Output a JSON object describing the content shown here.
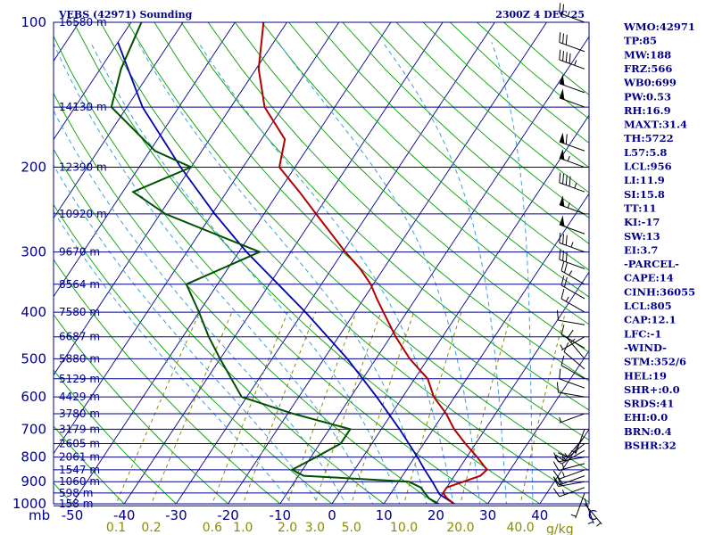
{
  "chart_data": {
    "type": "skew-t log-p sounding",
    "title_left": "VEBS (42971) Sounding",
    "title_right": "2300Z  4 DEC 25",
    "p_axis_unit": "mb",
    "t_axis_unit": "C",
    "mix_axis_unit": "g/kg",
    "pressure_levels": [
      100,
      200,
      300,
      400,
      500,
      600,
      700,
      800,
      900,
      1000
    ],
    "pressure_label_levels": [
      100,
      200,
      300,
      400,
      500,
      600,
      700,
      800,
      900,
      1000
    ],
    "temperature_ticks": [
      -50,
      -40,
      -30,
      -20,
      -10,
      0,
      10,
      20,
      30,
      40
    ],
    "mixing_ratio_ticks": [
      "0.1",
      "0.2",
      "0.6",
      "1.0",
      "2.0",
      "3.0",
      "5.0",
      "10.0",
      "20.0",
      "40.0"
    ],
    "mixing_ratio_values": [
      0.1,
      0.2,
      0.6,
      1.0,
      2.0,
      3.0,
      5.0,
      10.0,
      20.0,
      40.0
    ],
    "height_labels": [
      {
        "p": 100,
        "label": "16580 m"
      },
      {
        "p": 150,
        "label": "14130 m"
      },
      {
        "p": 200,
        "label": "12390 m"
      },
      {
        "p": 250,
        "label": "10920 m"
      },
      {
        "p": 300,
        "label": "9670 m"
      },
      {
        "p": 350,
        "label": "8564 m"
      },
      {
        "p": 400,
        "label": "7580 m"
      },
      {
        "p": 450,
        "label": "6687 m"
      },
      {
        "p": 500,
        "label": "5880 m"
      },
      {
        "p": 550,
        "label": "5129 m"
      },
      {
        "p": 600,
        "label": "4429 m"
      },
      {
        "p": 650,
        "label": "3780 m"
      },
      {
        "p": 700,
        "label": "3179 m"
      },
      {
        "p": 750,
        "label": "2605 m"
      },
      {
        "p": 800,
        "label": "2061 m"
      },
      {
        "p": 850,
        "label": "1547 m"
      },
      {
        "p": 900,
        "label": "1060 m"
      },
      {
        "p": 950,
        "label": "598 m"
      },
      {
        "p": 1000,
        "label": "158 m"
      }
    ],
    "temperature_profile": [
      {
        "p": 1010,
        "t": 24.5
      },
      {
        "p": 1000,
        "t": 23.5
      },
      {
        "p": 975,
        "t": 21.5
      },
      {
        "p": 950,
        "t": 20.0
      },
      {
        "p": 925,
        "t": 20.0
      },
      {
        "p": 900,
        "t": 22.5
      },
      {
        "p": 875,
        "t": 25.0
      },
      {
        "p": 850,
        "t": 25.5
      },
      {
        "p": 800,
        "t": 22.0
      },
      {
        "p": 750,
        "t": 18.0
      },
      {
        "p": 700,
        "t": 14.0
      },
      {
        "p": 650,
        "t": 10.5
      },
      {
        "p": 600,
        "t": 6.0
      },
      {
        "p": 550,
        "t": 2.5
      },
      {
        "p": 500,
        "t": -3.5
      },
      {
        "p": 450,
        "t": -9.0
      },
      {
        "p": 400,
        "t": -14.5
      },
      {
        "p": 375,
        "t": -17.5
      },
      {
        "p": 350,
        "t": -20.5
      },
      {
        "p": 325,
        "t": -24.5
      },
      {
        "p": 300,
        "t": -29.5
      },
      {
        "p": 275,
        "t": -34.5
      },
      {
        "p": 250,
        "t": -40.0
      },
      {
        "p": 225,
        "t": -46.0
      },
      {
        "p": 200,
        "t": -53.0
      },
      {
        "p": 175,
        "t": -55.5
      },
      {
        "p": 150,
        "t": -63.5
      },
      {
        "p": 125,
        "t": -69.5
      },
      {
        "p": 100,
        "t": -74.5
      }
    ],
    "dewpoint_profile": [
      {
        "p": 1010,
        "t": 21.0
      },
      {
        "p": 1000,
        "t": 20.5
      },
      {
        "p": 975,
        "t": 18.0
      },
      {
        "p": 950,
        "t": 16.5
      },
      {
        "p": 925,
        "t": 15.0
      },
      {
        "p": 900,
        "t": 12.0
      },
      {
        "p": 875,
        "t": -9.0
      },
      {
        "p": 850,
        "t": -12.0
      },
      {
        "p": 800,
        "t": -9.0
      },
      {
        "p": 750,
        "t": -6.0
      },
      {
        "p": 700,
        "t": -6.0
      },
      {
        "p": 650,
        "t": -19.0
      },
      {
        "p": 600,
        "t": -31.0
      },
      {
        "p": 500,
        "t": -40.0
      },
      {
        "p": 450,
        "t": -45.0
      },
      {
        "p": 400,
        "t": -50.0
      },
      {
        "p": 350,
        "t": -56.0
      },
      {
        "p": 300,
        "t": -46.0
      },
      {
        "p": 250,
        "t": -69.0
      },
      {
        "p": 225,
        "t": -78.0
      },
      {
        "p": 200,
        "t": -70.0
      },
      {
        "p": 185,
        "t": -79.0
      },
      {
        "p": 150,
        "t": -93.0
      },
      {
        "p": 125,
        "t": -96.0
      },
      {
        "p": 100,
        "t": -98.0
      }
    ],
    "parcel_profile": [
      {
        "p": 1000,
        "t": 23.5
      },
      {
        "p": 956,
        "t": 19.5
      },
      {
        "p": 900,
        "t": 16.5
      },
      {
        "p": 850,
        "t": 13.5
      },
      {
        "p": 800,
        "t": 10.5
      },
      {
        "p": 700,
        "t": 3.5
      },
      {
        "p": 600,
        "t": -5.0
      },
      {
        "p": 500,
        "t": -15.5
      },
      {
        "p": 400,
        "t": -29.5
      },
      {
        "p": 300,
        "t": -48.5
      },
      {
        "p": 250,
        "t": -59.5
      },
      {
        "p": 200,
        "t": -72.0
      },
      {
        "p": 150,
        "t": -87.0
      },
      {
        "p": 110,
        "t": -100.0
      }
    ],
    "wind_barbs": [
      {
        "p": 1000,
        "dir": 140,
        "spd": 5
      },
      {
        "p": 975,
        "dir": 160,
        "spd": 5
      },
      {
        "p": 950,
        "dir": 200,
        "spd": 5
      },
      {
        "p": 925,
        "dir": 250,
        "spd": 15
      },
      {
        "p": 900,
        "dir": 260,
        "spd": 20
      },
      {
        "p": 875,
        "dir": 250,
        "spd": 20
      },
      {
        "p": 850,
        "dir": 250,
        "spd": 15
      },
      {
        "p": 825,
        "dir": 255,
        "spd": 15
      },
      {
        "p": 800,
        "dir": 260,
        "spd": 15
      },
      {
        "p": 775,
        "dir": 240,
        "spd": 15
      },
      {
        "p": 750,
        "dir": 230,
        "spd": 15
      },
      {
        "p": 725,
        "dir": 220,
        "spd": 10
      },
      {
        "p": 700,
        "dir": 200,
        "spd": 5
      },
      {
        "p": 650,
        "dir": 250,
        "spd": 5
      },
      {
        "p": 600,
        "dir": 280,
        "spd": 10
      },
      {
        "p": 575,
        "dir": 290,
        "spd": 10
      },
      {
        "p": 550,
        "dir": 300,
        "spd": 10
      },
      {
        "p": 525,
        "dir": 310,
        "spd": 10
      },
      {
        "p": 500,
        "dir": 320,
        "spd": 15
      },
      {
        "p": 475,
        "dir": 300,
        "spd": 10
      },
      {
        "p": 450,
        "dir": 240,
        "spd": 5
      },
      {
        "p": 425,
        "dir": 280,
        "spd": 10
      },
      {
        "p": 400,
        "dir": 300,
        "spd": 15
      },
      {
        "p": 375,
        "dir": 300,
        "spd": 20
      },
      {
        "p": 350,
        "dir": 300,
        "spd": 25
      },
      {
        "p": 325,
        "dir": 290,
        "spd": 30
      },
      {
        "p": 300,
        "dir": 290,
        "spd": 35
      },
      {
        "p": 275,
        "dir": 290,
        "spd": 50
      },
      {
        "p": 250,
        "dir": 290,
        "spd": 55
      },
      {
        "p": 225,
        "dir": 290,
        "spd": 45
      },
      {
        "p": 200,
        "dir": 290,
        "spd": 55
      },
      {
        "p": 185,
        "dir": 290,
        "spd": 60
      },
      {
        "p": 150,
        "dir": 290,
        "spd": 50
      },
      {
        "p": 140,
        "dir": 290,
        "spd": 50
      },
      {
        "p": 125,
        "dir": 290,
        "spd": 45
      },
      {
        "p": 115,
        "dir": 290,
        "spd": 30
      },
      {
        "p": 100,
        "dir": 290,
        "spd": 25
      }
    ],
    "colors": {
      "isobar": "#00008b",
      "isotherm": "#00008b",
      "dry_adiabat": "#00a000",
      "moist_adiabat": "#3aa0e0",
      "mixing_ratio": "#8b8b00",
      "temperature": "#b00000",
      "dewpoint": "#005000",
      "parcel": "#0000b0",
      "wind": "#000000"
    }
  },
  "indices": [
    {
      "label": "WMO:42971"
    },
    {
      "label": "TP:85"
    },
    {
      "label": "MW:188"
    },
    {
      "label": "FRZ:566"
    },
    {
      "label": "WB0:699"
    },
    {
      "label": "PW:0.53"
    },
    {
      "label": "RH:16.9"
    },
    {
      "label": "MAXT:31.4"
    },
    {
      "label": "TH:5722"
    },
    {
      "label": "L57:5.8"
    },
    {
      "label": "LCL:956"
    },
    {
      "label": "LI:11.9"
    },
    {
      "label": "SI:15.8"
    },
    {
      "label": "TT:11"
    },
    {
      "label": "KI:-17"
    },
    {
      "label": "SW:13"
    },
    {
      "label": "EI:3.7"
    },
    {
      "label": "-PARCEL-"
    },
    {
      "label": "CAPE:14"
    },
    {
      "label": "CINH:36055"
    },
    {
      "label": "LCL:805"
    },
    {
      "label": "CAP:12.1"
    },
    {
      "label": "LFC:-1"
    },
    {
      "label": "-WIND-"
    },
    {
      "label": "STM:352/6"
    },
    {
      "label": "HEL:19"
    },
    {
      "label": "SHR+:0.0"
    },
    {
      "label": "SRDS:41"
    },
    {
      "label": "EHI:0.0"
    },
    {
      "label": "BRN:0.4"
    },
    {
      "label": "BSHR:32"
    }
  ]
}
